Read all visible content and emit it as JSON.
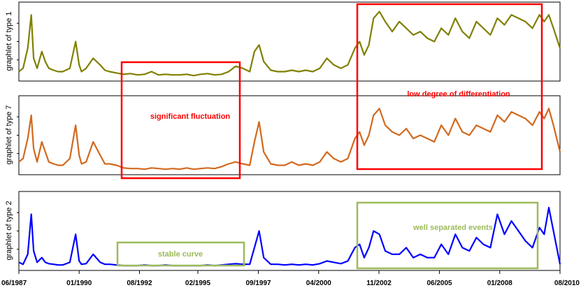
{
  "chart_data": {
    "type": "line",
    "x_tick_labels": [
      "06/1987",
      "01/1990",
      "08/1992",
      "02/1995",
      "09/1997",
      "04/2000",
      "11/2002",
      "06/2005",
      "01/2008",
      "08/2010"
    ],
    "x_tick_years": [
      1987.42,
      1990.0,
      1992.58,
      1995.08,
      1997.67,
      2000.25,
      2002.83,
      2005.42,
      2008.0,
      2010.58
    ],
    "xlim": [
      1987.42,
      2010.58
    ],
    "grid": false,
    "panels": [
      {
        "ylabel": "graphlet of type 1",
        "color": "#808000",
        "ylim": [
          0,
          1.1
        ],
        "series": [
          {
            "values_x": [
              1987.42,
              1987.6,
              1987.8,
              1987.95,
              1988.05,
              1988.2,
              1988.4,
              1988.55,
              1988.7,
              1988.9,
              1989.1,
              1989.3,
              1989.6,
              1989.85,
              1990.0,
              1990.1,
              1990.3,
              1990.6,
              1990.9,
              1991.1,
              1991.3,
              1991.6,
              1991.9,
              1992.2,
              1992.5,
              1992.8,
              1993.1,
              1993.4,
              1993.7,
              1994.0,
              1994.3,
              1994.6,
              1994.9,
              1995.2,
              1995.5,
              1995.8,
              1996.1,
              1996.4,
              1996.7,
              1997.0,
              1997.3,
              1997.5,
              1997.7,
              1997.9,
              1998.2,
              1998.5,
              1998.8,
              1999.1,
              1999.4,
              1999.7,
              2000.0,
              2000.3,
              2000.6,
              2000.9,
              2001.2,
              2001.5,
              2001.8,
              2002.0,
              2002.2,
              2002.4,
              2002.6,
              2002.85,
              2003.1,
              2003.4,
              2003.7,
              2004.0,
              2004.3,
              2004.6,
              2004.9,
              2005.2,
              2005.5,
              2005.8,
              2006.1,
              2006.4,
              2006.7,
              2007.0,
              2007.3,
              2007.6,
              2007.9,
              2008.2,
              2008.5,
              2008.8,
              2009.1,
              2009.4,
              2009.7,
              2009.9,
              2010.1,
              2010.3,
              2010.58
            ],
            "values_y": [
              0.1,
              0.15,
              0.45,
              0.95,
              0.3,
              0.15,
              0.4,
              0.25,
              0.15,
              0.12,
              0.1,
              0.1,
              0.15,
              0.55,
              0.2,
              0.1,
              0.15,
              0.3,
              0.2,
              0.12,
              0.1,
              0.08,
              0.06,
              0.07,
              0.05,
              0.06,
              0.1,
              0.05,
              0.06,
              0.05,
              0.05,
              0.06,
              0.04,
              0.06,
              0.07,
              0.05,
              0.06,
              0.1,
              0.18,
              0.15,
              0.1,
              0.4,
              0.5,
              0.25,
              0.12,
              0.1,
              0.1,
              0.12,
              0.1,
              0.12,
              0.1,
              0.15,
              0.3,
              0.2,
              0.15,
              0.2,
              0.45,
              0.55,
              0.35,
              0.5,
              0.9,
              1.0,
              0.85,
              0.7,
              0.85,
              0.75,
              0.65,
              0.7,
              0.6,
              0.55,
              0.75,
              0.65,
              0.9,
              0.7,
              0.6,
              0.85,
              0.75,
              0.65,
              0.9,
              0.8,
              0.95,
              0.9,
              0.85,
              0.75,
              0.95,
              0.85,
              0.95,
              0.75,
              0.45
            ]
          }
        ]
      },
      {
        "ylabel": "graphlet of type 7",
        "color": "#D2691E",
        "ylim": [
          0,
          1.1
        ],
        "series": [
          {
            "values_x": [
              1987.42,
              1987.6,
              1987.8,
              1987.95,
              1988.05,
              1988.2,
              1988.4,
              1988.55,
              1988.7,
              1988.9,
              1989.1,
              1989.3,
              1989.6,
              1989.85,
              1990.0,
              1990.1,
              1990.3,
              1990.6,
              1990.9,
              1991.1,
              1991.3,
              1991.6,
              1991.9,
              1992.2,
              1992.5,
              1992.8,
              1993.1,
              1993.4,
              1993.7,
              1994.0,
              1994.3,
              1994.6,
              1994.9,
              1995.2,
              1995.5,
              1995.8,
              1996.1,
              1996.4,
              1996.7,
              1997.0,
              1997.3,
              1997.5,
              1997.7,
              1997.9,
              1998.2,
              1998.5,
              1998.8,
              1999.1,
              1999.4,
              1999.7,
              2000.0,
              2000.3,
              2000.6,
              2000.9,
              2001.2,
              2001.5,
              2001.8,
              2002.0,
              2002.2,
              2002.4,
              2002.6,
              2002.85,
              2003.1,
              2003.4,
              2003.7,
              2004.0,
              2004.3,
              2004.6,
              2004.9,
              2005.2,
              2005.5,
              2005.8,
              2006.1,
              2006.4,
              2006.7,
              2007.0,
              2007.3,
              2007.6,
              2007.9,
              2008.2,
              2008.5,
              2008.8,
              2009.1,
              2009.4,
              2009.7,
              2009.9,
              2010.1,
              2010.3,
              2010.58
            ],
            "values_y": [
              0.15,
              0.2,
              0.5,
              0.85,
              0.35,
              0.15,
              0.45,
              0.3,
              0.15,
              0.12,
              0.1,
              0.1,
              0.2,
              0.7,
              0.25,
              0.12,
              0.15,
              0.45,
              0.25,
              0.12,
              0.12,
              0.1,
              0.06,
              0.05,
              0.05,
              0.04,
              0.06,
              0.05,
              0.04,
              0.05,
              0.04,
              0.06,
              0.04,
              0.05,
              0.06,
              0.05,
              0.08,
              0.12,
              0.15,
              0.12,
              0.1,
              0.45,
              0.75,
              0.3,
              0.12,
              0.1,
              0.1,
              0.15,
              0.1,
              0.12,
              0.1,
              0.15,
              0.3,
              0.2,
              0.15,
              0.2,
              0.5,
              0.6,
              0.4,
              0.55,
              0.85,
              0.95,
              0.7,
              0.6,
              0.55,
              0.65,
              0.5,
              0.55,
              0.5,
              0.45,
              0.7,
              0.55,
              0.8,
              0.6,
              0.55,
              0.7,
              0.65,
              0.6,
              0.85,
              0.75,
              0.9,
              0.85,
              0.8,
              0.7,
              0.9,
              0.8,
              0.95,
              0.7,
              0.3
            ]
          }
        ]
      },
      {
        "ylabel": "graphlet of type 2",
        "color": "#0000FF",
        "ylim": [
          0,
          1.1
        ],
        "series": [
          {
            "values_x": [
              1987.42,
              1987.6,
              1987.8,
              1987.95,
              1988.05,
              1988.2,
              1988.4,
              1988.55,
              1988.7,
              1988.9,
              1989.1,
              1989.3,
              1989.6,
              1989.85,
              1990.0,
              1990.1,
              1990.3,
              1990.6,
              1990.9,
              1991.1,
              1991.3,
              1991.6,
              1991.9,
              1992.2,
              1992.5,
              1992.8,
              1993.1,
              1993.4,
              1993.7,
              1994.0,
              1994.3,
              1994.6,
              1994.9,
              1995.2,
              1995.5,
              1995.8,
              1996.1,
              1996.4,
              1996.7,
              1997.0,
              1997.3,
              1997.5,
              1997.7,
              1997.9,
              1998.2,
              1998.5,
              1998.8,
              1999.1,
              1999.4,
              1999.7,
              2000.0,
              2000.3,
              2000.6,
              2000.9,
              2001.2,
              2001.5,
              2001.8,
              2002.0,
              2002.2,
              2002.4,
              2002.6,
              2002.85,
              2003.1,
              2003.4,
              2003.7,
              2004.0,
              2004.3,
              2004.6,
              2004.9,
              2005.2,
              2005.5,
              2005.8,
              2006.1,
              2006.4,
              2006.7,
              2007.0,
              2007.3,
              2007.6,
              2007.9,
              2008.2,
              2008.5,
              2008.8,
              2009.1,
              2009.4,
              2009.7,
              2009.9,
              2010.1,
              2010.3,
              2010.58
            ],
            "values_y": [
              0.08,
              0.05,
              0.2,
              0.8,
              0.25,
              0.08,
              0.15,
              0.08,
              0.06,
              0.05,
              0.04,
              0.04,
              0.08,
              0.5,
              0.1,
              0.05,
              0.06,
              0.2,
              0.08,
              0.05,
              0.05,
              0.04,
              0.03,
              0.03,
              0.03,
              0.04,
              0.03,
              0.03,
              0.04,
              0.03,
              0.03,
              0.03,
              0.03,
              0.03,
              0.04,
              0.03,
              0.04,
              0.05,
              0.06,
              0.05,
              0.05,
              0.3,
              0.55,
              0.15,
              0.05,
              0.05,
              0.04,
              0.05,
              0.04,
              0.05,
              0.04,
              0.06,
              0.1,
              0.08,
              0.06,
              0.1,
              0.3,
              0.35,
              0.15,
              0.3,
              0.55,
              0.5,
              0.25,
              0.2,
              0.2,
              0.3,
              0.15,
              0.2,
              0.15,
              0.15,
              0.35,
              0.2,
              0.5,
              0.3,
              0.25,
              0.45,
              0.35,
              0.3,
              0.8,
              0.5,
              0.7,
              0.55,
              0.4,
              0.3,
              0.6,
              0.5,
              0.9,
              0.55,
              0.05
            ]
          }
        ]
      }
    ],
    "annotations": [
      {
        "text": "significant fluctuation",
        "color": "#FF0000",
        "x_range": [
          1991.5,
          1996.6
        ],
        "panels": "type 1–type 7"
      },
      {
        "text": "low degree of differentiation",
        "color": "#FF0000",
        "x_range": [
          2002.0,
          2009.6
        ],
        "panels": "type 1–type 7"
      },
      {
        "text": "stable curve",
        "color": "#9BBB59",
        "x_range": [
          1991.4,
          1996.8
        ],
        "panels": "type 2"
      },
      {
        "text": "well separated events",
        "color": "#9BBB59",
        "x_range": [
          2002.0,
          2009.4
        ],
        "panels": "type 2"
      }
    ]
  }
}
